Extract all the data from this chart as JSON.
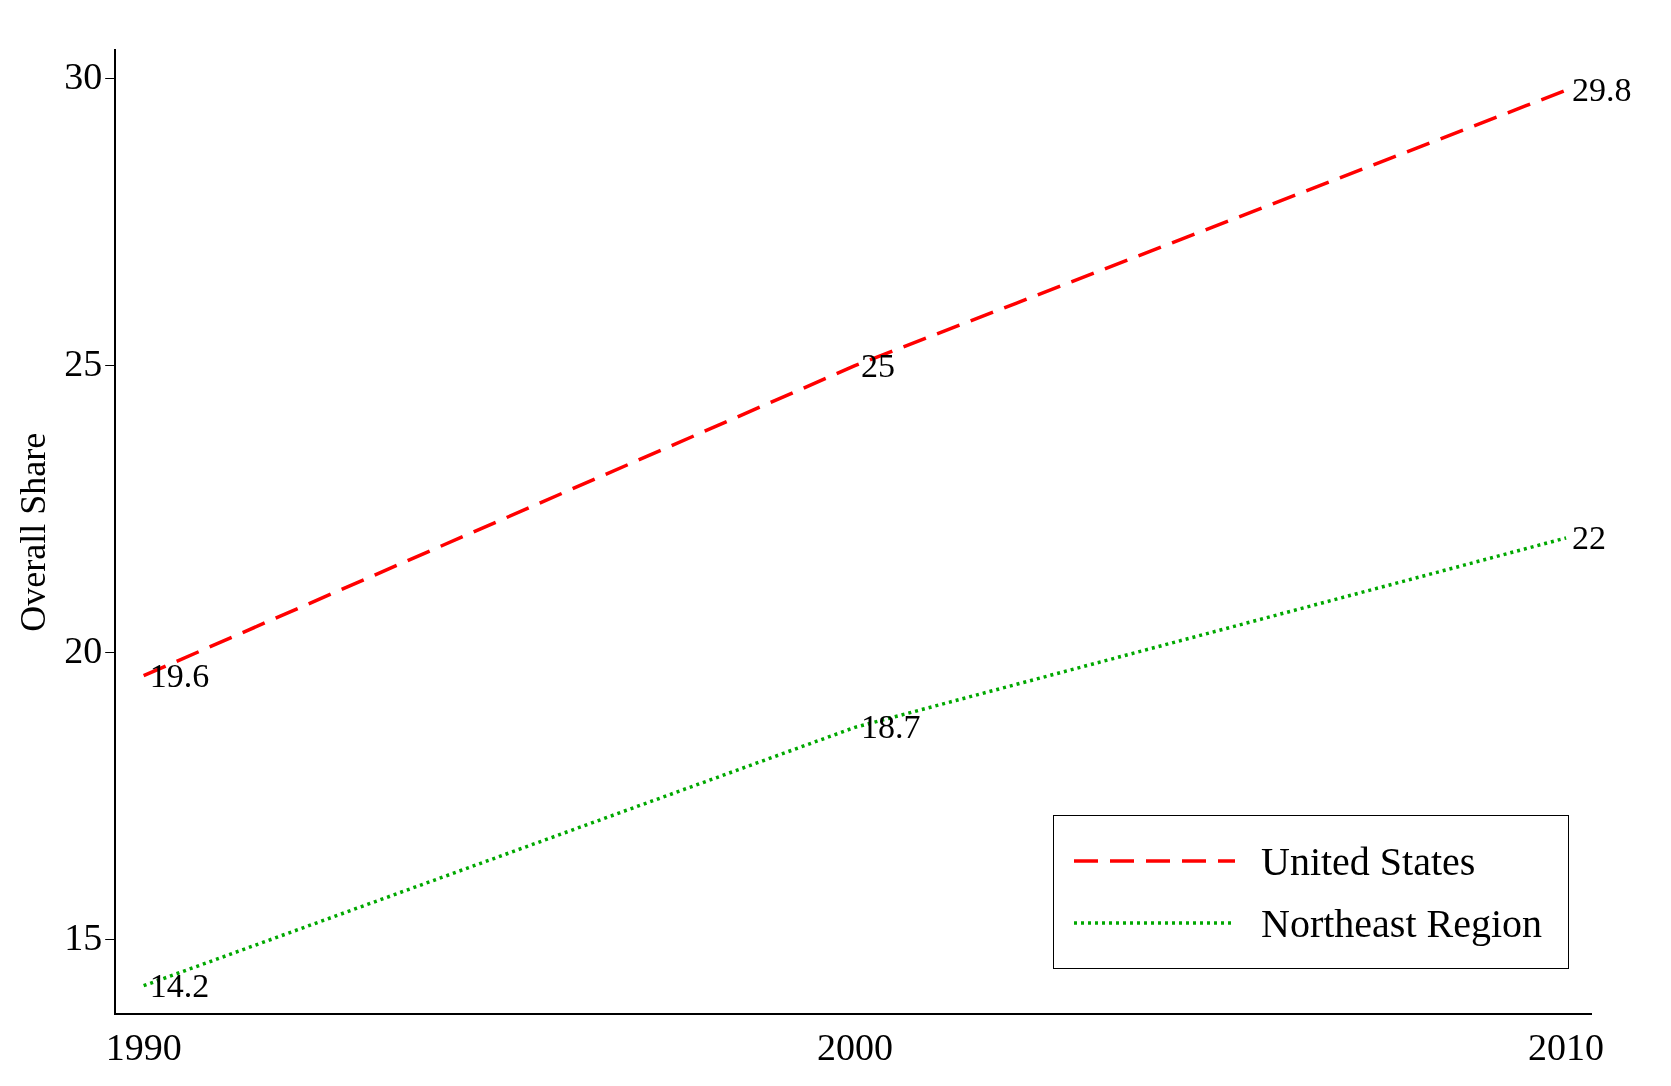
{
  "chart_data": {
    "type": "line",
    "ylabel": "Overall Share",
    "x": [
      1990,
      2000,
      2010
    ],
    "xlim": [
      1989.6,
      2010.35
    ],
    "xticks": [
      1990,
      2000,
      2010
    ],
    "ylim": [
      13.7,
      30.5
    ],
    "yticks": [
      15,
      20,
      25,
      30
    ],
    "grid": false,
    "legend": "bottom right",
    "marker": "none",
    "data_labels": true,
    "series": [
      {
        "name": "United States",
        "color": "#ff0000",
        "line_style": "dashed",
        "values": [
          19.6,
          25,
          29.8
        ]
      },
      {
        "name": "Northeast Region",
        "color": "#00a800",
        "line_style": "dotted",
        "values": [
          14.2,
          18.7,
          22
        ]
      }
    ]
  }
}
